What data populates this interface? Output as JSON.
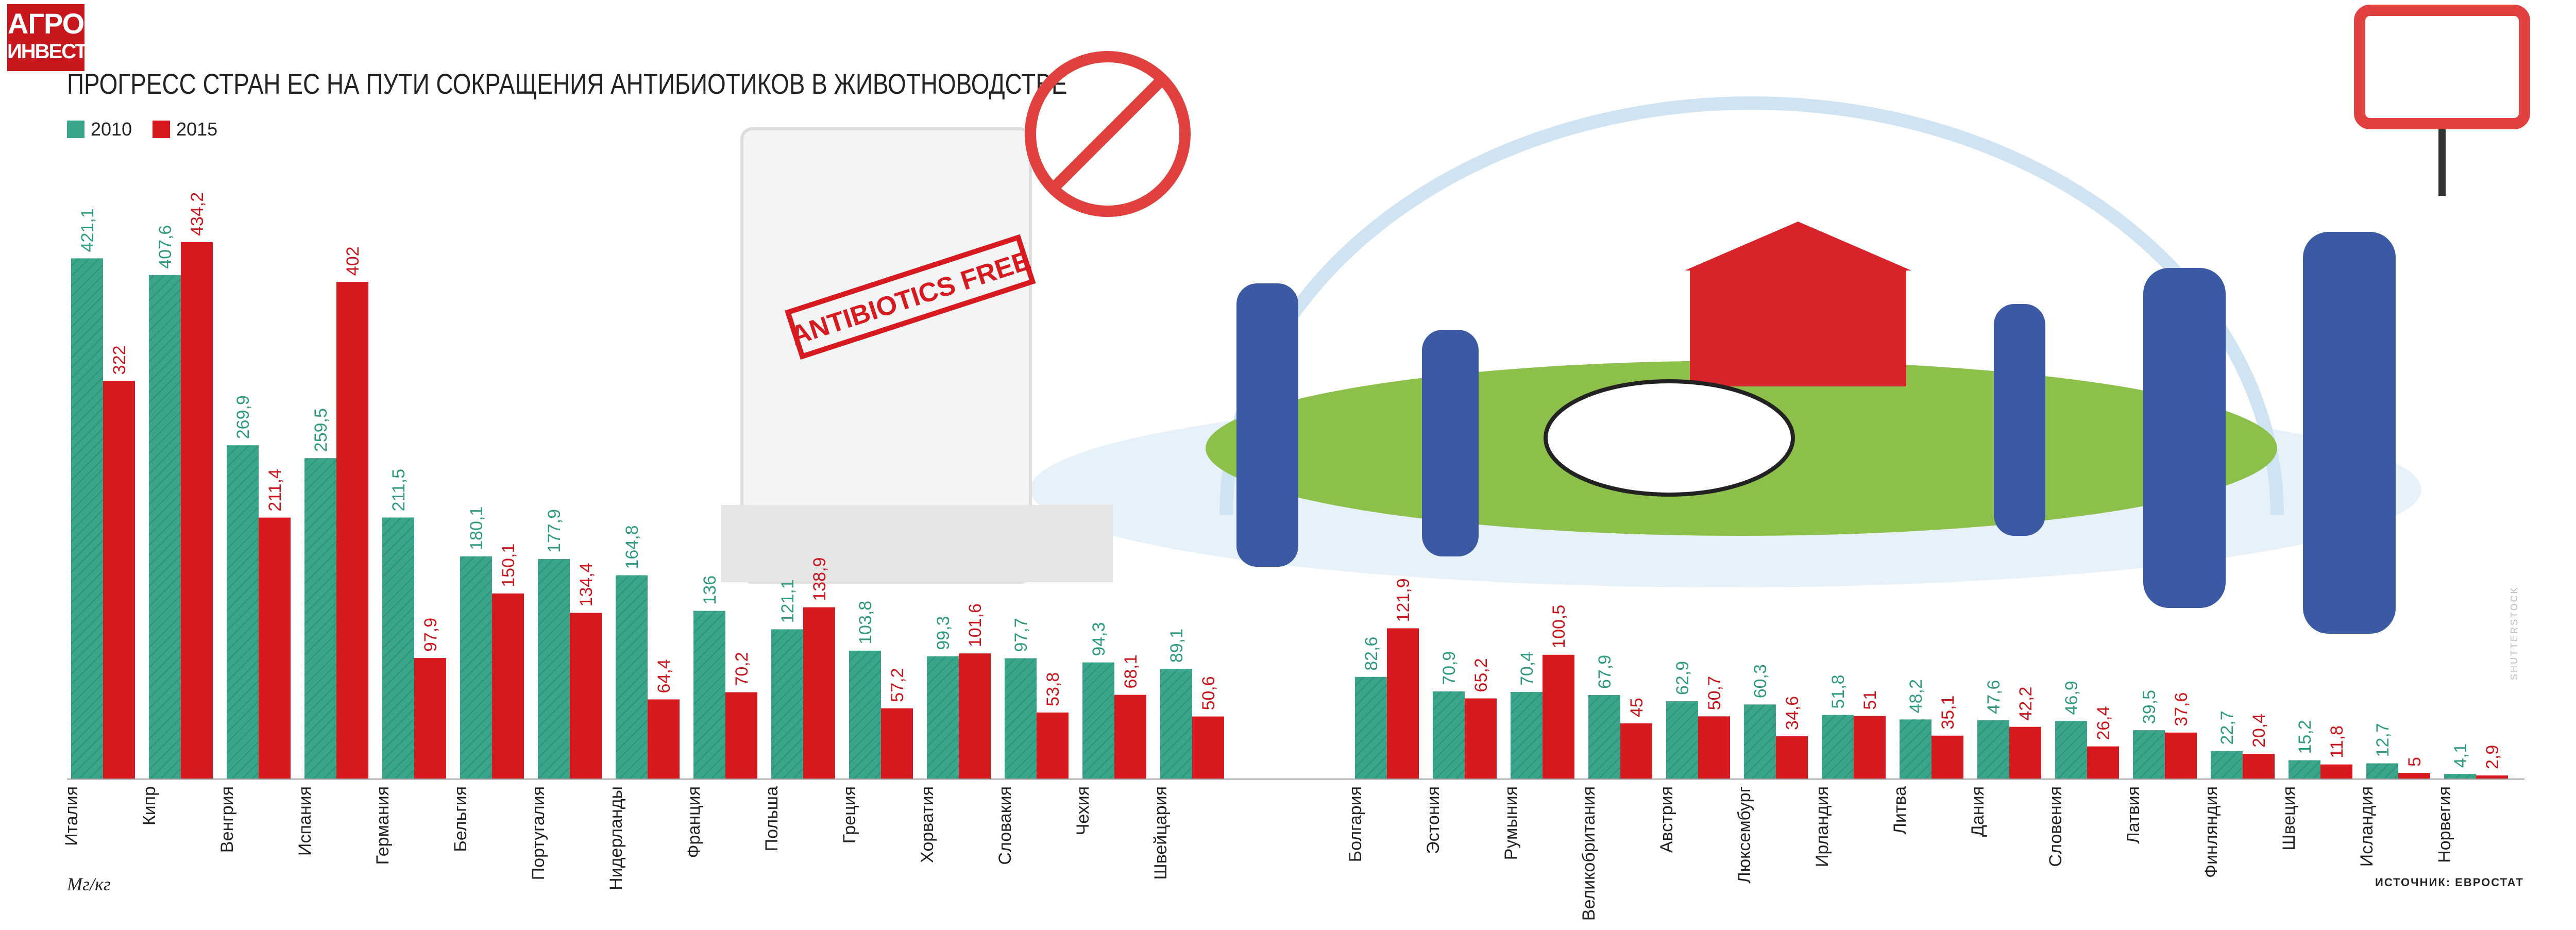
{
  "logo": {
    "line1": "АГРО",
    "line2": "ИНВЕСТОР"
  },
  "image_text": {
    "stamp": "ANTIBIOTICS FREE"
  },
  "footer": {
    "unit": "Мг/кг",
    "source": "ИСТОЧНИК: ЕВРОСТАТ",
    "watermark": "SHUTTERSTOCK"
  },
  "colors": {
    "accent_2010": "#3aa58b",
    "accent_2015": "#d71920"
  },
  "chart_data": {
    "type": "bar",
    "title": "ПРОГРЕСС СТРАН ЕС НА ПУТИ СОКРАЩЕНИЯ АНТИБИОТИКОВ В ЖИВОТНОВОДСТВЕ",
    "ylabel": "Мг/кг",
    "legend": "top-left",
    "grid": false,
    "categories": [
      "Италия",
      "Кипр",
      "Венгрия",
      "Испания",
      "Германия",
      "Бельгия",
      "Португалия",
      "Нидерланды",
      "Франция",
      "Польша",
      "Греция",
      "Хорватия",
      "Словакия",
      "Чехия",
      "Швейцария",
      "Болгария",
      "Эстония",
      "Румыния",
      "Великобритания",
      "Австрия",
      "Люксембург",
      "Ирландия",
      "Литва",
      "Дания",
      "Словения",
      "Латвия",
      "Финляндия",
      "Швеция",
      "Исландия",
      "Норвегия"
    ],
    "series": [
      {
        "name": "2010",
        "values": [
          421.1,
          407.6,
          269.9,
          259.5,
          211.5,
          180.1,
          177.9,
          164.8,
          136,
          121.1,
          103.8,
          99.3,
          97.7,
          94.3,
          89.1,
          82.6,
          70.9,
          70.4,
          67.9,
          62.9,
          60.3,
          51.8,
          48.2,
          47.6,
          46.9,
          39.5,
          22.7,
          15.2,
          12.7,
          4.1
        ],
        "labels": [
          "421,1",
          "407,6",
          "269,9",
          "259,5",
          "211,5",
          "180,1",
          "177,9",
          "164,8",
          "136",
          "121,1",
          "103,8",
          "99,3",
          "97,7",
          "94,3",
          "89,1",
          "82,6",
          "70,9",
          "70,4",
          "67,9",
          "62,9",
          "60,3",
          "51,8",
          "48,2",
          "47,6",
          "46,9",
          "39,5",
          "22,7",
          "15,2",
          "12,7",
          "4,1"
        ]
      },
      {
        "name": "2015",
        "values": [
          322,
          434.2,
          211.4,
          402,
          97.9,
          150.1,
          134.4,
          64.4,
          70.2,
          138.9,
          57.2,
          101.6,
          53.8,
          68.1,
          50.6,
          121.9,
          65.2,
          100.5,
          45,
          50.7,
          34.6,
          51,
          35.1,
          42.2,
          26.4,
          37.6,
          20.4,
          11.8,
          5,
          2.9
        ],
        "labels": [
          "322",
          "434,2",
          "211,4",
          "402",
          "97,9",
          "150,1",
          "134,4",
          "64,4",
          "70,2",
          "138,9",
          "57,2",
          "101,6",
          "53,8",
          "68,1",
          "50,6",
          "121,9",
          "65,2",
          "100,5",
          "45",
          "50,7",
          "34,6",
          "51",
          "35,1",
          "42,2",
          "26,4",
          "37,6",
          "20,4",
          "11,8",
          "5",
          "2,9"
        ]
      }
    ]
  }
}
